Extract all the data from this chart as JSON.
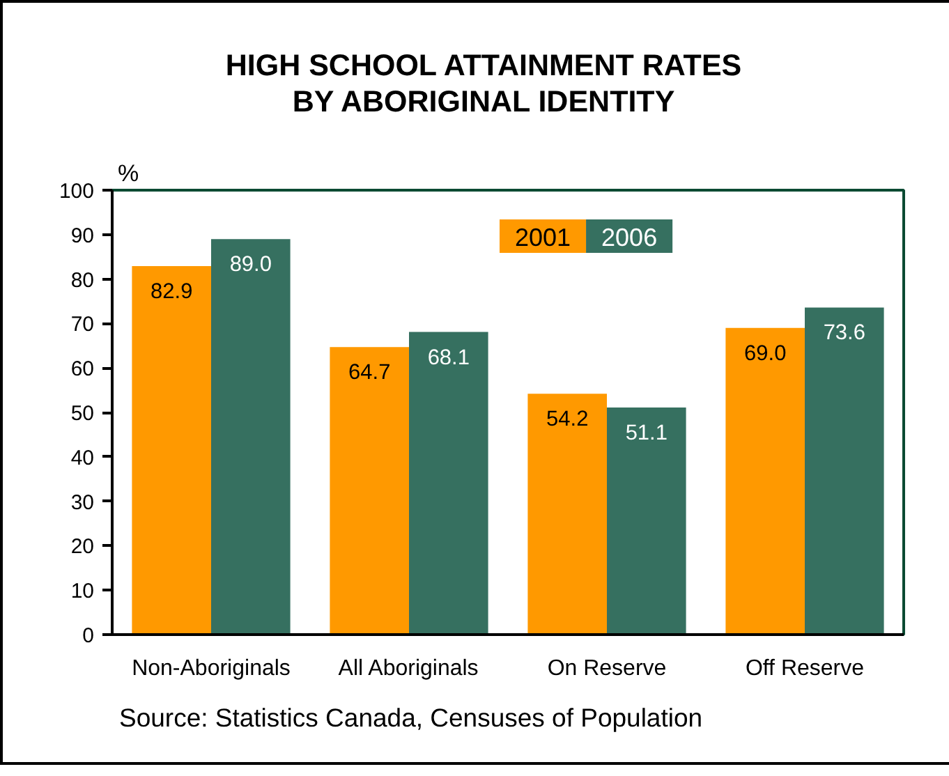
{
  "chart_data": {
    "type": "bar",
    "title": "HIGH SCHOOL ATTAINMENT RATES\nBY ABORIGINAL IDENTITY",
    "ylabel": "%",
    "categories": [
      "Non-Aboriginals",
      "All Aboriginals",
      "On Reserve",
      "Off Reserve"
    ],
    "series": [
      {
        "name": "2001",
        "color": "#ff9900",
        "values": [
          82.9,
          64.7,
          54.2,
          69.0
        ],
        "value_labels": [
          "82.9",
          "64.7",
          "54.2",
          "69.0"
        ]
      },
      {
        "name": "2006",
        "color": "#367060",
        "values": [
          89.0,
          68.1,
          51.1,
          73.6
        ],
        "value_labels": [
          "89.0",
          "68.1",
          "51.1",
          "73.6"
        ]
      }
    ],
    "ylim": [
      0,
      100
    ],
    "yticks": [
      0,
      10,
      20,
      30,
      40,
      50,
      60,
      70,
      80,
      90,
      100
    ],
    "legend": "top",
    "annotations": [
      "Source: Statistics Canada, Censuses of Population"
    ]
  }
}
